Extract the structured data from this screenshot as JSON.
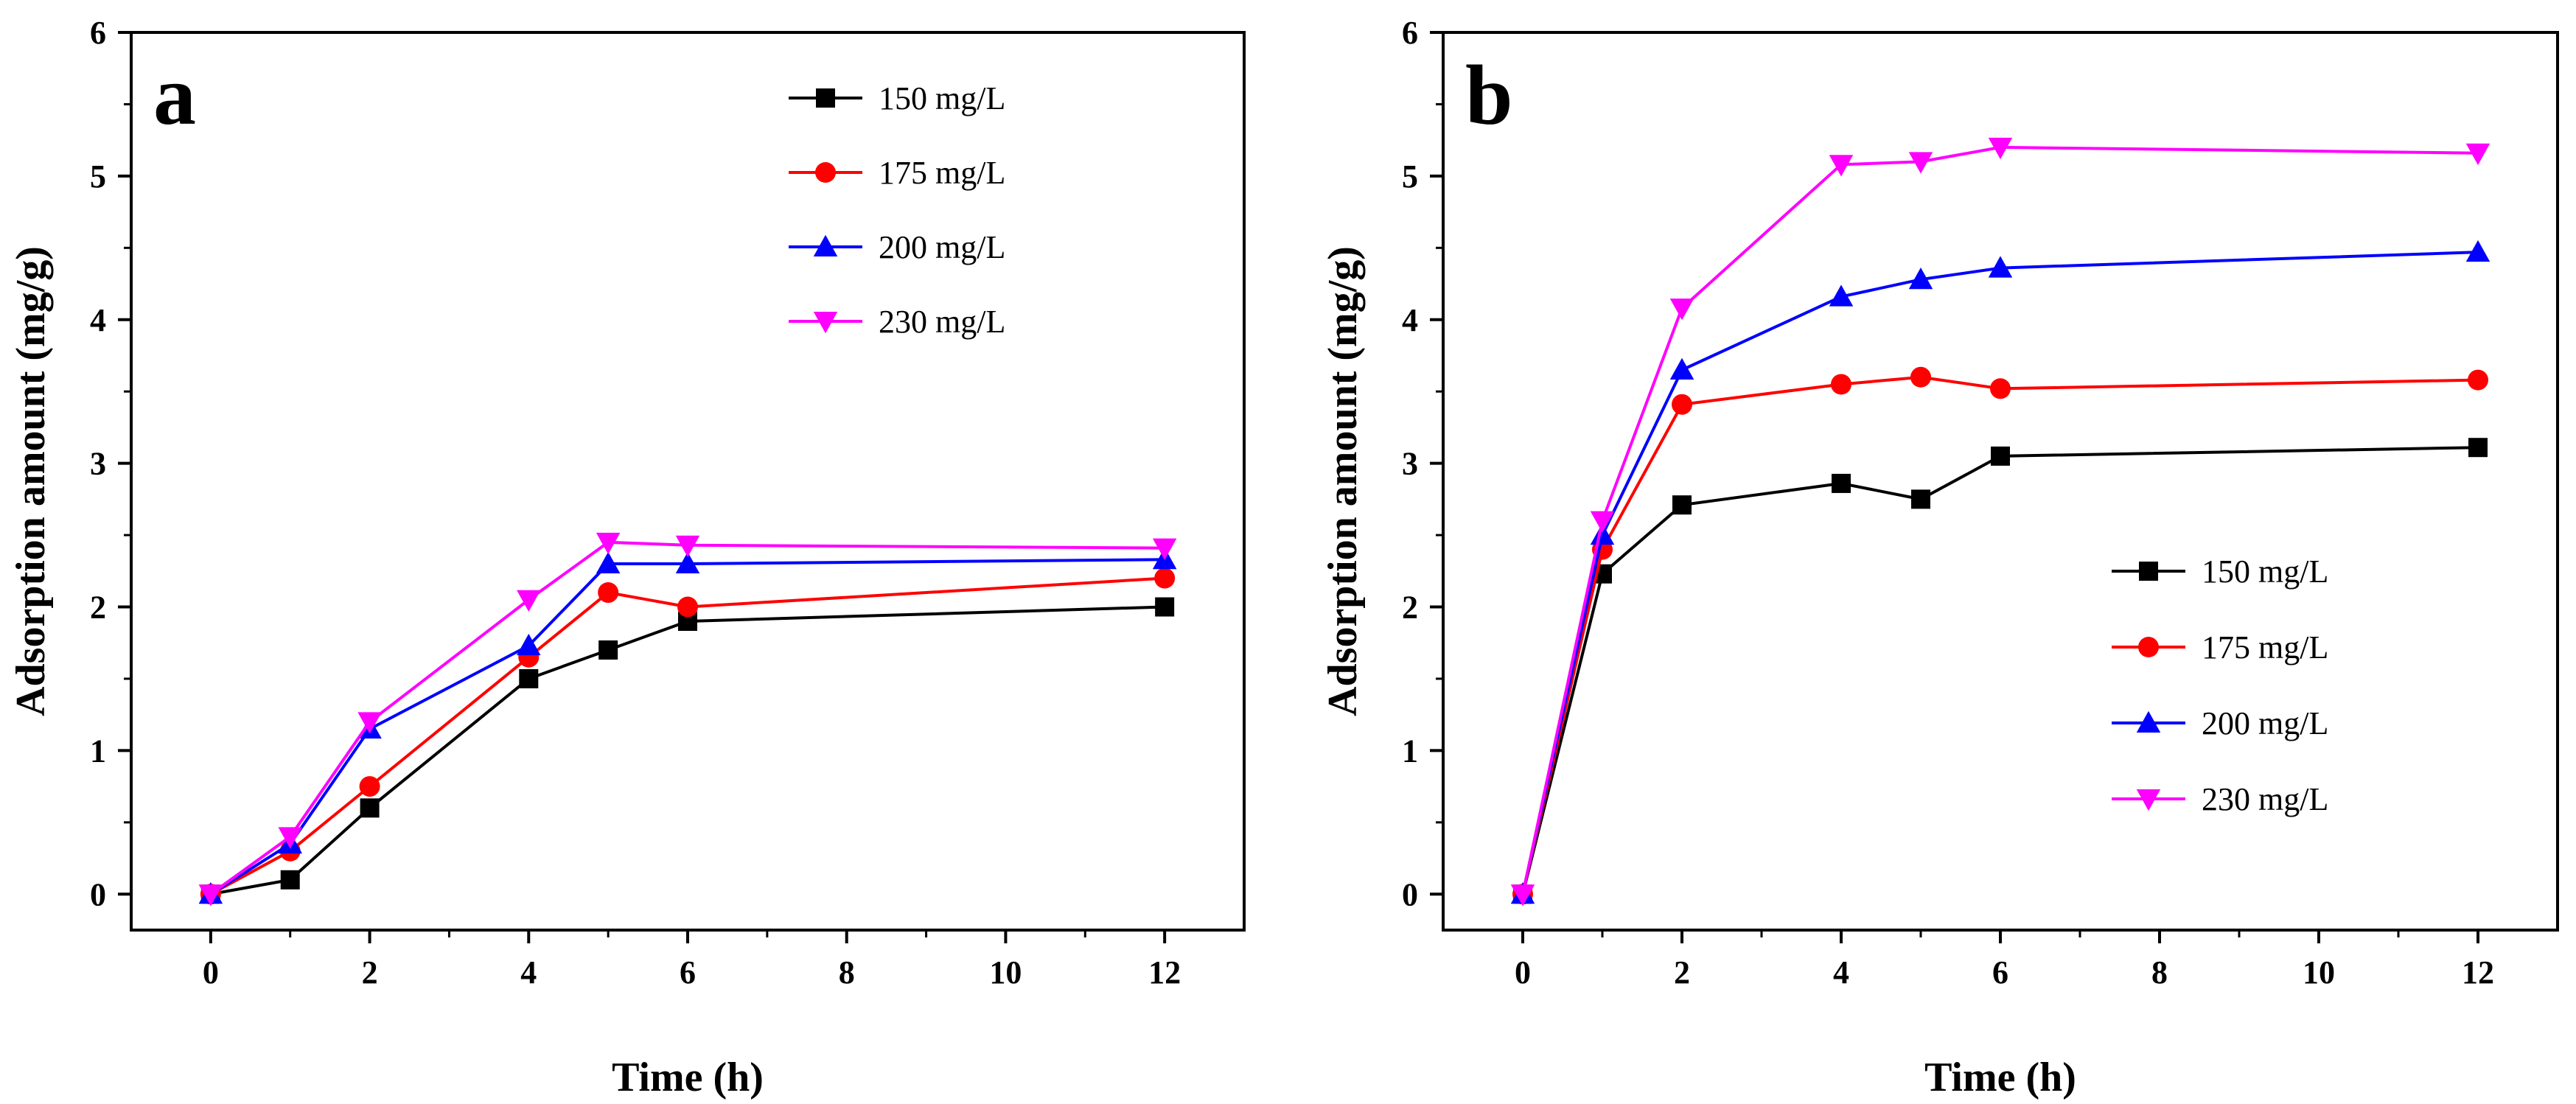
{
  "chart_data": [
    {
      "type": "line",
      "panel_label": "a",
      "title": "",
      "xlabel": "Time (h)",
      "ylabel": "Adsorption amount (mg/g)",
      "xlim": [
        -1,
        13
      ],
      "ylim": [
        -0.25,
        6
      ],
      "x_ticks": [
        0,
        2,
        4,
        6,
        8,
        10,
        12
      ],
      "x_tick_labels": [
        "0",
        "2",
        "4",
        "6",
        "8",
        "10",
        "12"
      ],
      "y_ticks": [
        0,
        1,
        2,
        3,
        4,
        5,
        6
      ],
      "y_tick_labels": [
        "0",
        "1",
        "2",
        "3",
        "4",
        "5",
        "6"
      ],
      "legend_position": "top-right",
      "x": [
        0,
        1,
        2,
        4,
        5,
        6,
        12
      ],
      "series": [
        {
          "name": "150 mg/L",
          "color": "#000000",
          "marker": "square",
          "values": [
            0,
            0.1,
            0.6,
            1.5,
            1.7,
            1.9,
            2.0
          ]
        },
        {
          "name": "175 mg/L",
          "color": "#ff0000",
          "marker": "circle",
          "values": [
            0,
            0.3,
            0.75,
            1.65,
            2.1,
            2.0,
            2.2
          ]
        },
        {
          "name": "200 mg/L",
          "color": "#0000ff",
          "marker": "triangle-up",
          "values": [
            0,
            0.35,
            1.15,
            1.73,
            2.3,
            2.3,
            2.33
          ]
        },
        {
          "name": "230 mg/L",
          "color": "#ff00ff",
          "marker": "triangle-down",
          "values": [
            0,
            0.4,
            1.2,
            2.05,
            2.45,
            2.43,
            2.41
          ]
        }
      ]
    },
    {
      "type": "line",
      "panel_label": "b",
      "title": "",
      "xlabel": "Time (h)",
      "ylabel": "Adsorption amount (mg/g)",
      "xlim": [
        -1,
        13
      ],
      "ylim": [
        -0.25,
        6
      ],
      "x_ticks": [
        0,
        2,
        4,
        6,
        8,
        10,
        12
      ],
      "x_tick_labels": [
        "0",
        "2",
        "4",
        "6",
        "8",
        "10",
        "12"
      ],
      "y_ticks": [
        0,
        1,
        2,
        3,
        4,
        5,
        6
      ],
      "y_tick_labels": [
        "0",
        "1",
        "2",
        "3",
        "4",
        "5",
        "6"
      ],
      "legend_position": "bottom-right",
      "x": [
        0,
        1,
        2,
        4,
        5,
        6,
        12
      ],
      "series": [
        {
          "name": "150 mg/L",
          "color": "#000000",
          "marker": "square",
          "values": [
            0,
            2.23,
            2.71,
            2.86,
            2.75,
            3.05,
            3.11
          ]
        },
        {
          "name": "175 mg/L",
          "color": "#ff0000",
          "marker": "circle",
          "values": [
            0,
            2.4,
            3.41,
            3.55,
            3.6,
            3.52,
            3.58
          ]
        },
        {
          "name": "200 mg/L",
          "color": "#0000ff",
          "marker": "triangle-up",
          "values": [
            0,
            2.5,
            3.65,
            4.16,
            4.28,
            4.36,
            4.47
          ]
        },
        {
          "name": "230 mg/L",
          "color": "#ff00ff",
          "marker": "triangle-down",
          "values": [
            0,
            2.6,
            4.08,
            5.08,
            5.1,
            5.2,
            5.16
          ]
        }
      ]
    }
  ]
}
